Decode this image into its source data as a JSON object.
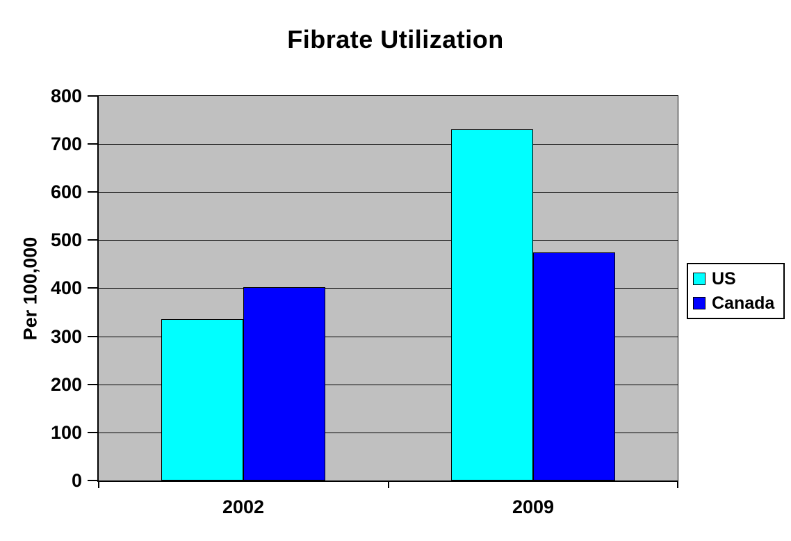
{
  "chart_data": {
    "type": "bar",
    "title": "Fibrate Utilization",
    "ylabel": "Per 100,000",
    "xlabel": "",
    "categories": [
      "2002",
      "2009"
    ],
    "series": [
      {
        "name": "US",
        "color": "#00FFFF",
        "values": [
          336,
          730
        ]
      },
      {
        "name": "Canada",
        "color": "#0000FF",
        "values": [
          402,
          474
        ]
      }
    ],
    "ylim": [
      0,
      800
    ],
    "ytick_step": 100,
    "grid": "horizontal",
    "legend_position": "right",
    "plot_background": "#C0C0C0"
  }
}
